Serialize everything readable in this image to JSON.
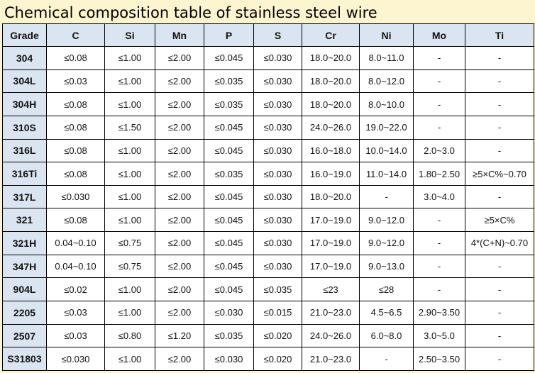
{
  "title": "Chemical composition table of stainless steel wire",
  "columns": [
    "Grade",
    "C",
    "Si",
    "Mn",
    "P",
    "S",
    "Cr",
    "Ni",
    "Mo",
    "Ti"
  ],
  "rows": [
    [
      "304",
      "≤0.08",
      "≤1.00",
      "≤2.00",
      "≤0.045",
      "≤0.030",
      "18.0~20.0",
      "8.0~11.0",
      "-",
      "-"
    ],
    [
      "304L",
      "≤0.03",
      "≤1.00",
      "≤2.00",
      "≤0.035",
      "≤0.030",
      "18.0~20.0",
      "8.0~12.0",
      "-",
      "-"
    ],
    [
      "304H",
      "≤0.08",
      "≤1.00",
      "≤2.00",
      "≤0.035",
      "≤0.030",
      "18.0~20.0",
      "8.0~10.0",
      "-",
      "-"
    ],
    [
      "310S",
      "≤0.08",
      "≤1.50",
      "≤2.00",
      "≤0.045",
      "≤0.030",
      "24.0~26.0",
      "19.0~22.0",
      "-",
      "-"
    ],
    [
      "316L",
      "≤0.08",
      "≤1.00",
      "≤2.00",
      "≤0.045",
      "≤0.030",
      "16.0~18.0",
      "10.0~14.0",
      "2.0~3.0",
      "-"
    ],
    [
      "316Ti",
      "≤0.08",
      "≤1.00",
      "≤2.00",
      "≤0.035",
      "≤0.030",
      "16.0~19.0",
      "11.0~14.0",
      "1.80~2.50",
      "≥5×C%~0.70"
    ],
    [
      "317L",
      "≤0.030",
      "≤1.00",
      "≤2.00",
      "≤0.045",
      "≤0.030",
      "18.0~20.0",
      "-",
      "3.0~4.0",
      "-"
    ],
    [
      "321",
      "≤0.08",
      "≤1.00",
      "≤2.00",
      "≤0.045",
      "≤0.030",
      "17.0~19.0",
      "9.0~12.0",
      "-",
      "≥5×C%"
    ],
    [
      "321H",
      "0.04~0.10",
      "≤0.75",
      "≤2.00",
      "≤0.045",
      "≤0.030",
      "17.0~19.0",
      "9.0~12.0",
      "-",
      "4*(C+N)~0.70"
    ],
    [
      "347H",
      "0.04~0.10",
      "≤0.75",
      "≤2.00",
      "≤0.045",
      "≤0.030",
      "17.0~19.0",
      "9.0~13.0",
      "-",
      "-"
    ],
    [
      "904L",
      "≤0.02",
      "≤1.00",
      "≤2.00",
      "≤0.045",
      "≤0.035",
      "≤23",
      "≤28",
      "-",
      "-"
    ],
    [
      "2205",
      "≤0.03",
      "≤1.00",
      "≤2.00",
      "≤0.030",
      "≤0.015",
      "21.0~23.0",
      "4.5~6.5",
      "2.90~3.50",
      "-"
    ],
    [
      "2507",
      "≤0.03",
      "≤0.80",
      "≤1.20",
      "≤0.035",
      "≤0.020",
      "24.0~26.0",
      "6.0~8.0",
      "3.0~5.0",
      "-"
    ],
    [
      "S31803",
      "≤0.030",
      "≤1.00",
      "≤2.00",
      "≤0.030",
      "≤0.020",
      "21.0~23.0",
      "-",
      "2.50~3.50",
      "-"
    ]
  ],
  "colors": {
    "page_background": "#fdf5cf",
    "header_fill": "#dbe5f1",
    "cell_fill": "#ffffff",
    "border": "#000000"
  }
}
